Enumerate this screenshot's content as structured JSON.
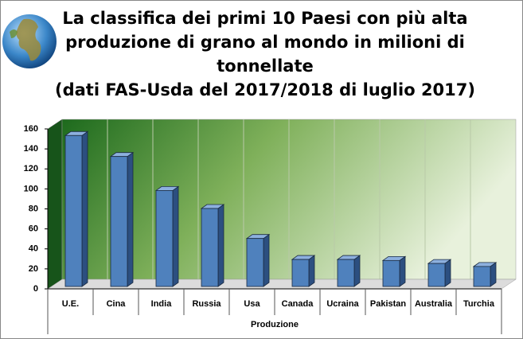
{
  "chart_data": {
    "type": "bar",
    "title": [
      "La classifica dei primi 10 Paesi con più alta",
      "produzione di grano al mondo in milioni di",
      "tonnellate",
      "(dati FAS-Usda del 2017/2018 di luglio 2017)"
    ],
    "x_label": "Produzione",
    "categories": [
      "U.E.",
      "Cina",
      "India",
      "Russia",
      "Usa",
      "Canada",
      "Ucraina",
      "Pakistan",
      "Australia",
      "Turchia"
    ],
    "values": [
      151,
      130,
      96,
      78,
      48,
      27,
      27,
      26,
      23,
      20
    ],
    "color": "#4f81bd",
    "ylim": [
      0,
      160
    ],
    "yticks": [
      0,
      20,
      40,
      60,
      80,
      100,
      120,
      140,
      160
    ]
  }
}
